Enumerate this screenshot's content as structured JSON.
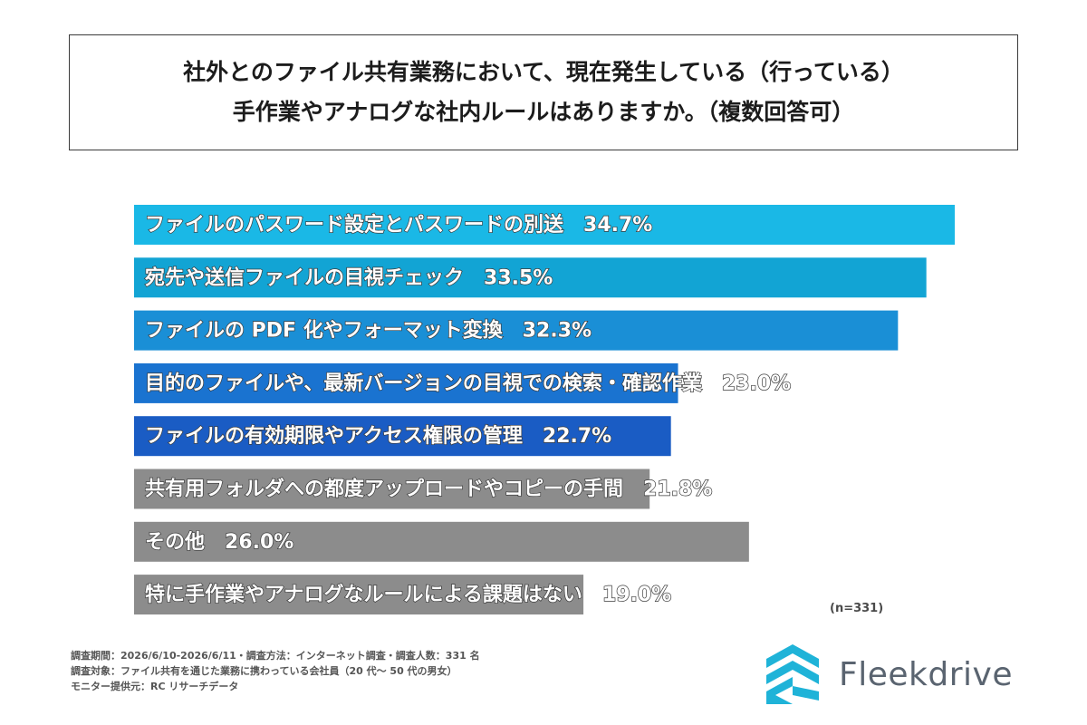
{
  "title": {
    "line1": "社外とのファイル共有業務において、現在発生している（行っている）",
    "line2": "手作業やアナログな社内ルールはありますか。（複数回答可）"
  },
  "chart_data": {
    "type": "bar",
    "orientation": "horizontal",
    "xlim": [
      0,
      35
    ],
    "categories": [
      "ファイルのパスワード設定とパスワードの別送",
      "宛先や送信ファイルの目視チェック",
      "ファイルの PDF 化やフォーマット変換",
      "目的のファイルや、最新バージョンの目視での検索・確認作業",
      "ファイルの有効期限やアクセス権限の管理",
      "共有用フォルダへの都度アップロードやコピーの手間",
      "その他",
      "特に手作業やアナログなルールによる課題はない"
    ],
    "values": [
      34.7,
      33.5,
      32.3,
      23.0,
      22.7,
      21.8,
      26.0,
      19.0
    ],
    "value_labels": [
      "34.7%",
      "33.5%",
      "32.3%",
      "23.0%",
      "22.7%",
      "21.8%",
      "26.0%",
      "19.0%"
    ],
    "colors": [
      "#1ab8e6",
      "#12a4d4",
      "#1a8fd6",
      "#1a73d0",
      "#1a5cc4",
      "#8c8c8c",
      "#8c8c8c",
      "#8c8c8c"
    ]
  },
  "n_note": "(n=331)",
  "survey": {
    "line1": "調査期間：2026/6/10-2026/6/11・調査方法：インターネット調査・調査人数：331 名",
    "line2": "調査対象：ファイル共有を通じた業務に携わっている会社員（20 代〜 50 代の男女）",
    "line3": "モニター提供元：RC リサーチデータ"
  },
  "logo": {
    "text": "Fleekdrive",
    "mark_color": "#1fb3d8"
  }
}
